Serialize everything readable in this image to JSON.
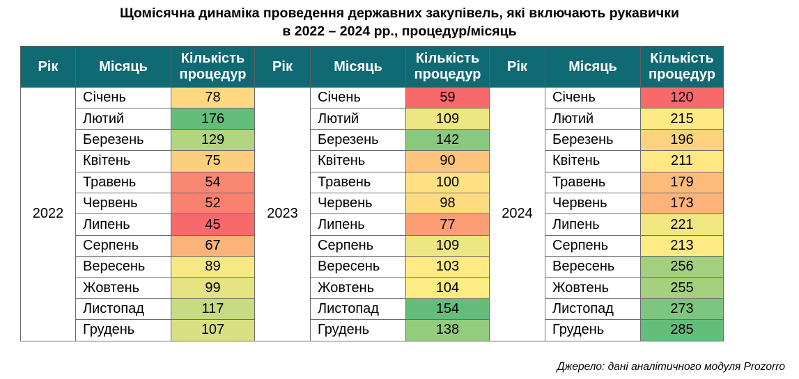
{
  "title_line1": "Щомісячна динаміка проведення державних закупівель, які включають рукавички",
  "title_line2": "в 2022 – 2024 рр., процедур/місяць",
  "headers": {
    "year": "Рік",
    "month": "Місяць",
    "count_line1": "Кількість",
    "count_line2": "процедур"
  },
  "months": [
    "Січень",
    "Лютий",
    "Березень",
    "Квітень",
    "Травень",
    "Червень",
    "Липень",
    "Серпень",
    "Вересень",
    "Жовтень",
    "Листопад",
    "Грудень"
  ],
  "chart_data": {
    "type": "table",
    "columns": [
      "Рік",
      "Місяць",
      "Кількість процедур"
    ],
    "color_scale": {
      "low": "#f8696b",
      "mid": "#ffeb84",
      "high": "#63be7b"
    },
    "series": [
      {
        "name": "2022",
        "values": [
          78,
          176,
          129,
          75,
          54,
          52,
          45,
          67,
          89,
          99,
          117,
          107
        ]
      },
      {
        "name": "2023",
        "values": [
          59,
          109,
          142,
          90,
          100,
          98,
          77,
          109,
          103,
          104,
          154,
          138
        ]
      },
      {
        "name": "2024",
        "values": [
          120,
          215,
          196,
          211,
          179,
          173,
          221,
          213,
          256,
          255,
          273,
          285
        ]
      }
    ]
  },
  "source": "Джерело: дані аналітичного модуля Prozorro"
}
